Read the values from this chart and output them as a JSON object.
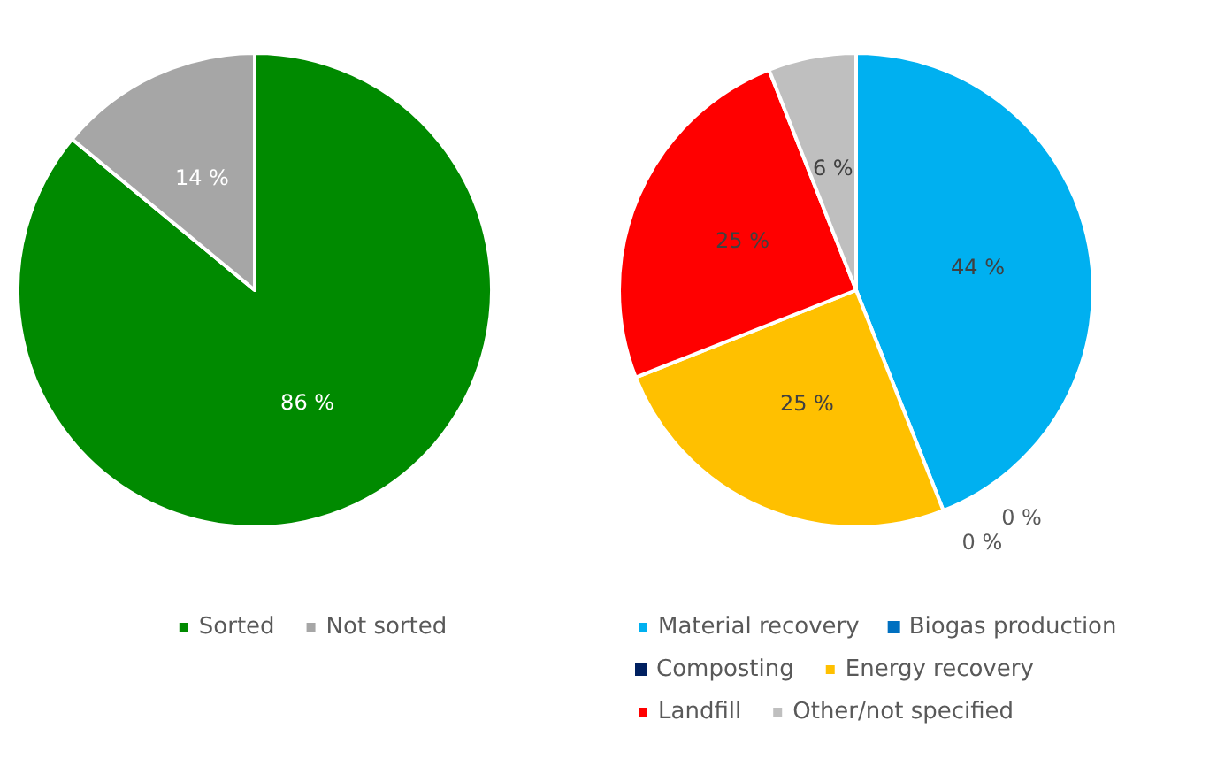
{
  "chart_data": [
    {
      "type": "pie",
      "categories": [
        "Sorted",
        "Not sorted"
      ],
      "values": [
        86,
        14
      ],
      "colors": [
        "#008a00",
        "#a6a6a6"
      ],
      "value_labels": [
        "86 %",
        "14 %"
      ],
      "legend": "bottom"
    },
    {
      "type": "pie",
      "categories": [
        "Material recovery",
        "Biogas production",
        "Composting",
        "Energy recovery",
        "Landfill",
        "Other/not specified"
      ],
      "values": [
        44,
        0,
        0,
        25,
        25,
        6
      ],
      "colors": [
        "#00b0f0",
        "#0070c0",
        "#002060",
        "#ffc000",
        "#ff0000",
        "#bfbfbf"
      ],
      "value_labels": [
        "44 %",
        "0 %",
        "0 %",
        "25 %",
        "25 %",
        "6 %"
      ],
      "legend": "bottom"
    }
  ]
}
